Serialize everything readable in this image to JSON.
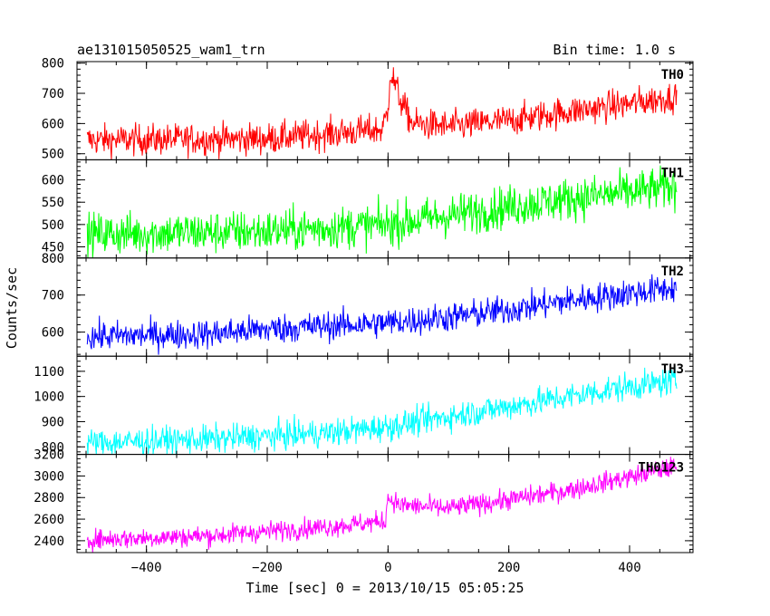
{
  "chart_data": {
    "type": "line",
    "title": "ae131015050525_wam1_trn",
    "subtitle": "Bin time: 1.0 s",
    "xlabel": "Time [sec] 0 = 2013/10/15 05:05:25",
    "ylabel": "Counts/sec",
    "xlim": [
      -515,
      505
    ],
    "x_ticks": [
      -400,
      -200,
      0,
      200,
      400
    ],
    "x_tick_labels": [
      "−400",
      "−200",
      "0",
      "200",
      "400"
    ],
    "x_range_data": [
      -498,
      478
    ],
    "grid": false,
    "panels": [
      {
        "name": "TH0",
        "color": "#ff0000",
        "ylim": [
          480,
          805
        ],
        "yticks": [
          500,
          600,
          700,
          800
        ],
        "trend": [
          [
            -498,
            545
          ],
          [
            -200,
            550
          ],
          [
            -10,
            580
          ],
          [
            0,
            640
          ],
          [
            3,
            770
          ],
          [
            10,
            740
          ],
          [
            20,
            680
          ],
          [
            40,
            600
          ],
          [
            100,
            590
          ],
          [
            200,
            610
          ],
          [
            300,
            640
          ],
          [
            400,
            665
          ],
          [
            478,
            690
          ]
        ],
        "noise_sd": 26
      },
      {
        "name": "TH1",
        "color": "#00ff00",
        "ylim": [
          425,
          645
        ],
        "yticks": [
          450,
          500,
          550,
          600
        ],
        "trend": [
          [
            -498,
            478
          ],
          [
            -200,
            485
          ],
          [
            0,
            500
          ],
          [
            100,
            520
          ],
          [
            200,
            540
          ],
          [
            300,
            558
          ],
          [
            400,
            572
          ],
          [
            478,
            585
          ]
        ],
        "noise_sd": 24
      },
      {
        "name": "TH2",
        "color": "#0000ff",
        "ylim": [
          535,
          800
        ],
        "yticks": [
          600,
          700,
          800
        ],
        "trend": [
          [
            -498,
            588
          ],
          [
            -300,
            595
          ],
          [
            -200,
            608
          ],
          [
            0,
            625
          ],
          [
            100,
            640
          ],
          [
            200,
            660
          ],
          [
            300,
            685
          ],
          [
            400,
            705
          ],
          [
            478,
            720
          ]
        ],
        "noise_sd": 20
      },
      {
        "name": "TH3",
        "color": "#00ffff",
        "ylim": [
          770,
          1160
        ],
        "yticks": [
          800,
          900,
          1000,
          1100
        ],
        "trend": [
          [
            -498,
            815
          ],
          [
            -300,
            830
          ],
          [
            -100,
            855
          ],
          [
            0,
            880
          ],
          [
            100,
            920
          ],
          [
            200,
            960
          ],
          [
            300,
            1000
          ],
          [
            400,
            1040
          ],
          [
            478,
            1060
          ]
        ],
        "noise_sd": 28
      },
      {
        "name": "TH0123",
        "color": "#ff00ff",
        "ylim": [
          2290,
          3200
        ],
        "yticks": [
          2400,
          2600,
          2800,
          3000,
          3200
        ],
        "trend": [
          [
            -498,
            2410
          ],
          [
            -300,
            2445
          ],
          [
            -100,
            2530
          ],
          [
            -5,
            2580
          ],
          [
            0,
            2800
          ],
          [
            20,
            2730
          ],
          [
            100,
            2700
          ],
          [
            200,
            2780
          ],
          [
            300,
            2870
          ],
          [
            400,
            2990
          ],
          [
            478,
            3090
          ]
        ],
        "noise_sd": 48
      }
    ]
  }
}
